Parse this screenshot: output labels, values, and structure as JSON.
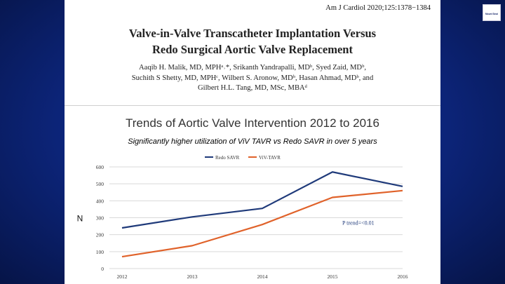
{
  "citation": "Am J Cardiol 2020;125:1378−1384",
  "paper_title_line1": "Valve-in-Valve Transcatheter Implantation Versus",
  "paper_title_line2": "Redo Surgical Aortic Valve Replacement",
  "authors_line1": "Aaqib H. Malik, MD, MPHᵃ˒*, Srikanth Yandrapalli, MDᵇ, Syed Zaid, MDᵇ,",
  "authors_line2": "Suchith S Shetty, MD, MPHᶜ, Wilbert S. Aronow, MDᵇ, Hasan Ahmad, MDᵇ, and",
  "authors_line3": "Gilbert H.L. Tang, MD, MSc, MBAᵈ",
  "logo_text": "Mount Sinai",
  "chart_title": "Trends of Aortic Valve Intervention 2012 to 2016",
  "chart_subtitle": "Significantly higher utilization of ViV TAVR vs Redo SAVR in over 5 years",
  "chart_data": {
    "type": "line",
    "x": [
      "2012",
      "2013",
      "2014",
      "2015",
      "2016"
    ],
    "ylabel": "N",
    "ylim": [
      0,
      600
    ],
    "yticks": [
      "0",
      "100",
      "200",
      "300",
      "400",
      "500",
      "600"
    ],
    "grid": true,
    "legend_position": "top",
    "series": [
      {
        "name": "Redo SAVR",
        "color": "#1f3a7a",
        "values": [
          240,
          305,
          355,
          570,
          485
        ]
      },
      {
        "name": "ViV-TAVR",
        "color": "#e0622a",
        "values": [
          70,
          135,
          260,
          420,
          460
        ]
      }
    ],
    "annotation": {
      "text": "P trend=<0.01",
      "x": "2015",
      "y": 258
    }
  }
}
